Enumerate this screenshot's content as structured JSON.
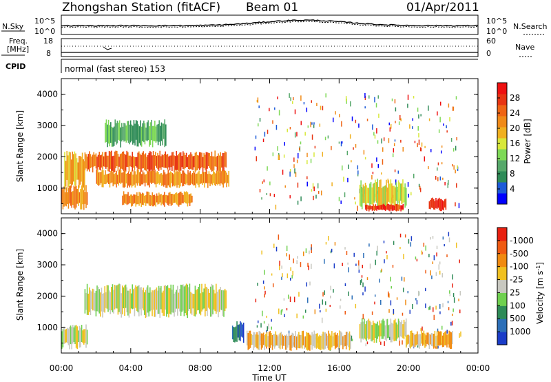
{
  "header": {
    "station": "Zhongshan Station (fitACF)",
    "beam": "Beam 01",
    "date": "01/Apr/2011"
  },
  "panels": {
    "nsky_label": "N.Sky",
    "nsearch_label": "N.Search",
    "nsky_ticks": [
      "10^5",
      "10^0"
    ],
    "freq_label_1": "Freq.",
    "freq_label_2": "[MHz]",
    "freq_ticks": [
      "18",
      "8"
    ],
    "nave_label": "Nave",
    "nave_ticks": [
      "60",
      "0"
    ],
    "cpid_label": "CPID",
    "cpid_text": "normal (fast stereo) 153"
  },
  "chart_data": [
    {
      "type": "heatmap",
      "title": "",
      "ylabel": "Slant Range [km]",
      "xlabel": "",
      "xlim": [
        "00:00",
        "24:00"
      ],
      "ylim": [
        180,
        4500
      ],
      "yticks": [
        1000,
        2000,
        3000,
        4000
      ],
      "colorbar": {
        "label": "Power [dB]",
        "ticks": [
          "4",
          "8",
          "12",
          "16",
          "20",
          "24",
          "28"
        ],
        "range": [
          0,
          30
        ],
        "colors": [
          "#0000ff",
          "#1c5ad8",
          "#2e8b57",
          "#56a86a",
          "#7ed957",
          "#d8e83a",
          "#f0b020",
          "#f08a18",
          "#ef6414",
          "#e83412",
          "#ee1010"
        ]
      },
      "echo_regions": [
        {
          "t_start": "00:10",
          "t_end": "01:20",
          "range_km": [
            900,
            2200
          ],
          "power_db": 18
        },
        {
          "t_start": "00:00",
          "t_end": "01:30",
          "range_km": [
            300,
            1100
          ],
          "power_db": 20
        },
        {
          "t_start": "01:20",
          "t_end": "09:30",
          "range_km": [
            1500,
            2200
          ],
          "power_db": 24
        },
        {
          "t_start": "02:00",
          "t_end": "09:40",
          "range_km": [
            1000,
            1600
          ],
          "power_db": 22
        },
        {
          "t_start": "02:30",
          "t_end": "06:00",
          "range_km": [
            2300,
            3200
          ],
          "power_db": 8
        },
        {
          "t_start": "03:30",
          "t_end": "07:30",
          "range_km": [
            400,
            900
          ],
          "power_db": 20
        },
        {
          "t_start": "17:10",
          "t_end": "19:50",
          "range_km": [
            300,
            1300
          ],
          "power_db": 14
        },
        {
          "t_start": "17:30",
          "t_end": "19:40",
          "range_km": [
            250,
            500
          ],
          "power_db": 28
        },
        {
          "t_start": "21:10",
          "t_end": "22:10",
          "range_km": [
            250,
            700
          ],
          "power_db": 28
        }
      ]
    },
    {
      "type": "heatmap",
      "title": "",
      "ylabel": "Slant Range [km]",
      "xlabel": "Time UT",
      "xlim": [
        "00:00",
        "24:00"
      ],
      "ylim": [
        180,
        4500
      ],
      "yticks": [
        1000,
        2000,
        3000,
        4000
      ],
      "xticks": [
        "00:00",
        "04:00",
        "08:00",
        "12:00",
        "16:00",
        "20:00",
        "00:00"
      ],
      "colorbar": {
        "label": "Velocity [m s^-1]",
        "ticks": [
          "1000",
          "500",
          "100",
          "25",
          "-25",
          "-100",
          "-500",
          "-1000"
        ],
        "range": [
          -1000,
          1000
        ],
        "colors": [
          "#1a3cc8",
          "#2c6fb8",
          "#2e8b57",
          "#6fd04f",
          "#c8c8c0",
          "#f0c020",
          "#f08a10",
          "#ef5a12",
          "#e82010"
        ]
      },
      "echo_regions": [
        {
          "t_start": "01:20",
          "t_end": "09:30",
          "range_km": [
            1300,
            2400
          ],
          "velocity_ms": 0
        },
        {
          "t_start": "00:00",
          "t_end": "01:30",
          "range_km": [
            300,
            1100
          ],
          "velocity_ms": -100
        },
        {
          "t_start": "09:50",
          "t_end": "10:30",
          "range_km": [
            500,
            1200
          ],
          "velocity_ms": 700
        },
        {
          "t_start": "10:40",
          "t_end": "16:40",
          "range_km": [
            250,
            900
          ],
          "velocity_ms": -300
        },
        {
          "t_start": "17:10",
          "t_end": "19:50",
          "range_km": [
            500,
            1300
          ],
          "velocity_ms": 0
        },
        {
          "t_start": "19:50",
          "t_end": "22:30",
          "range_km": [
            300,
            900
          ],
          "velocity_ms": -300
        }
      ]
    }
  ]
}
